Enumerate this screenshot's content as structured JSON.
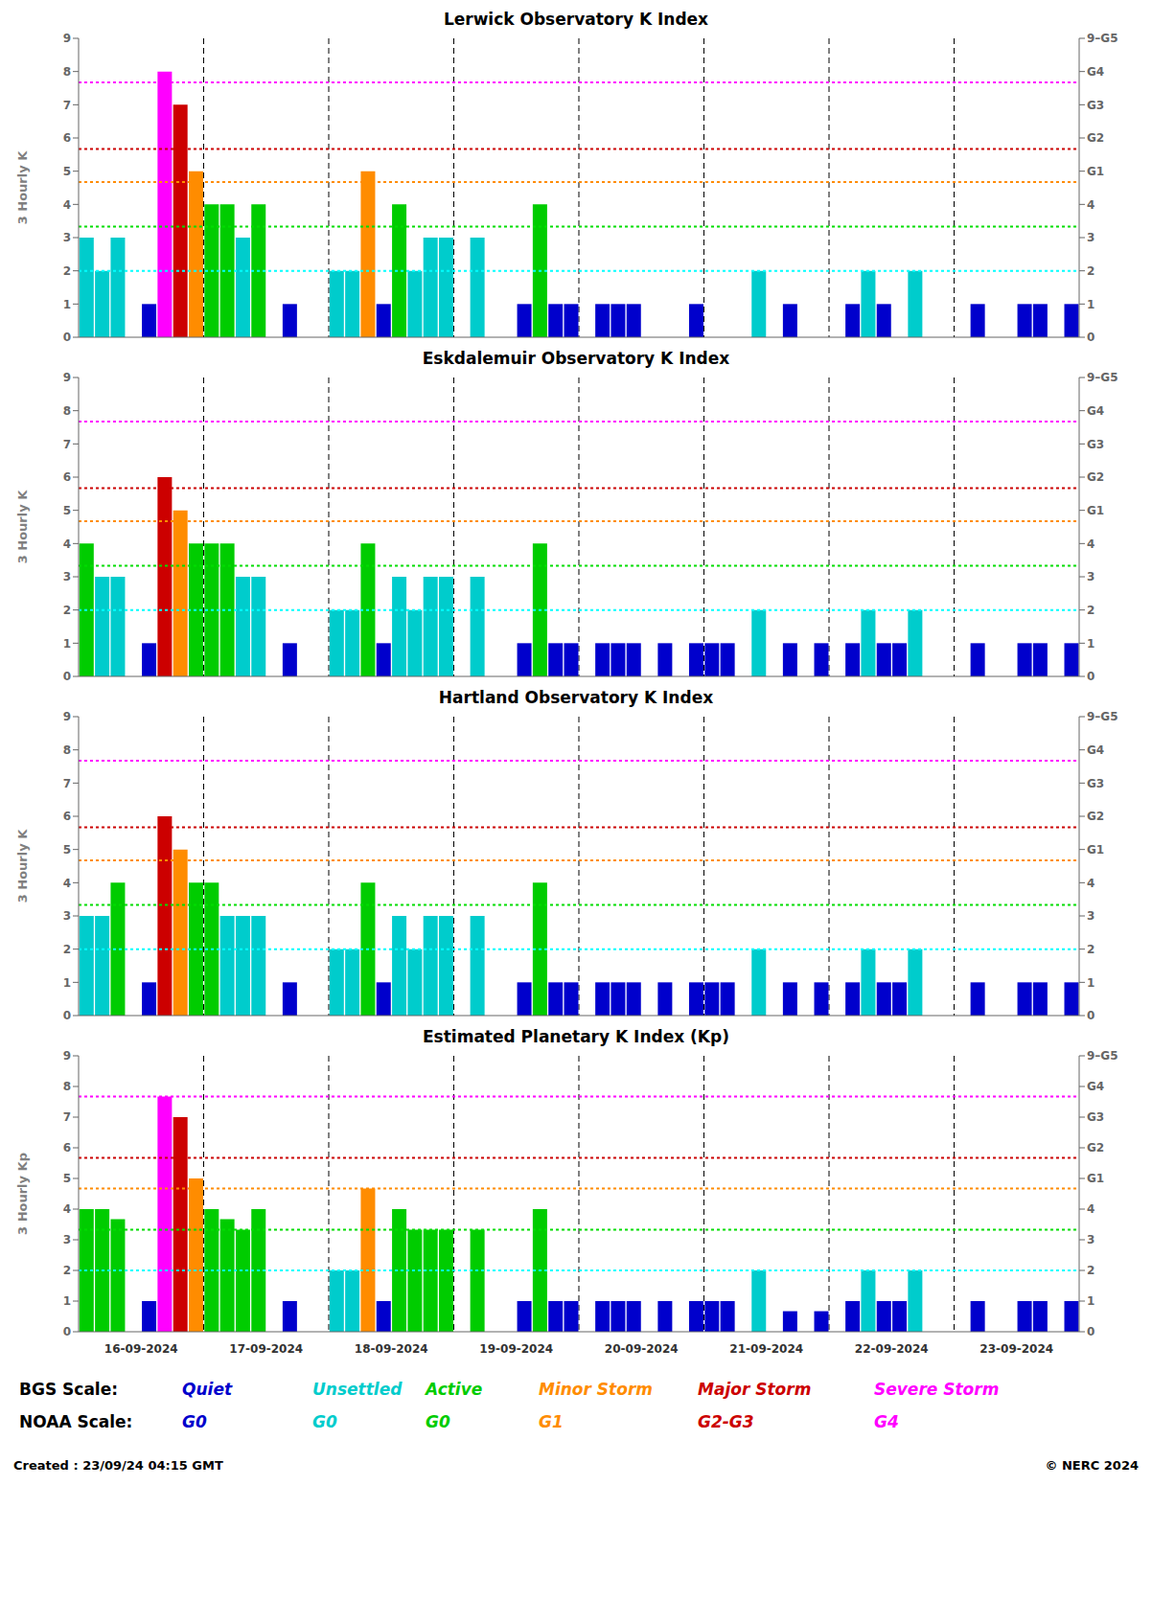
{
  "chart_data": [
    {
      "type": "bar",
      "title": "Lerwick Observatory K Index",
      "ylabel": "3 Hourly K",
      "tick_labels": "y",
      "categories": [
        null,
        null,
        null,
        null,
        "16-09-2024",
        null,
        null,
        null,
        null,
        null,
        null,
        null,
        "17-09-2024",
        null,
        null,
        null,
        null,
        null,
        null,
        null,
        "18-09-2024",
        null,
        null,
        null,
        null,
        null,
        null,
        null,
        "19-09-2024",
        null,
        null,
        null,
        null,
        null,
        null,
        null,
        "20-09-2024",
        null,
        null,
        null,
        null,
        null,
        null,
        null,
        "21-09-2024",
        null,
        null,
        null,
        null,
        null,
        null,
        null,
        "22-09-2024",
        null,
        null,
        null,
        null,
        null,
        null,
        null,
        "23-09-2024",
        null,
        null,
        null
      ],
      "values": [
        3,
        2,
        3,
        0,
        1,
        8,
        7,
        5,
        4,
        4,
        3,
        4,
        0,
        1,
        0,
        0,
        2,
        2,
        5,
        1,
        4,
        2,
        3,
        3,
        0,
        3,
        0,
        0,
        1,
        4,
        1,
        1,
        0,
        1,
        1,
        1,
        0,
        0,
        0,
        1,
        0,
        0,
        0,
        2,
        0,
        1,
        0,
        0,
        0,
        1,
        2,
        1,
        0,
        2,
        0,
        0,
        0,
        1,
        0,
        0,
        1,
        1,
        0,
        1
      ],
      "colors": [
        "#00CCCC",
        "#00CCCC",
        "#00CCCC",
        "#0000CC",
        "#0000CC",
        "#FF00FF",
        "#CC0000",
        "#FF8C00",
        "#00CC00",
        "#00CC00",
        "#00CCCC",
        "#00CC00",
        "#0000CC",
        "#0000CC",
        "#0000CC",
        "#0000CC",
        "#00CCCC",
        "#00CCCC",
        "#FF8C00",
        "#0000CC",
        "#00CC00",
        "#00CCCC",
        "#00CCCC",
        "#00CCCC",
        "#0000CC",
        "#00CCCC",
        "#0000CC",
        "#0000CC",
        "#0000CC",
        "#00CC00",
        "#0000CC",
        "#0000CC",
        "#0000CC",
        "#0000CC",
        "#0000CC",
        "#0000CC",
        "#0000CC",
        "#0000CC",
        "#0000CC",
        "#0000CC",
        "#0000CC",
        "#0000CC",
        "#0000CC",
        "#00CCCC",
        "#0000CC",
        "#0000CC",
        "#0000CC",
        "#0000CC",
        "#0000CC",
        "#0000CC",
        "#00CCCC",
        "#0000CC",
        "#0000CC",
        "#00CCCC",
        "#0000CC",
        "#0000CC",
        "#0000CC",
        "#0000CC",
        "#0000CC",
        "#0000CC",
        "#0000CC",
        "#0000CC",
        "#0000CC",
        "#0000CC"
      ],
      "ylim": [
        0,
        9
      ],
      "yticks": [
        0,
        1,
        2,
        3,
        4,
        5,
        6,
        7,
        8,
        9
      ],
      "y2lim": [
        0,
        9
      ],
      "y2ticks": [
        0,
        1,
        2,
        3,
        4,
        {
          "value": 5,
          "label": "G1"
        },
        {
          "value": 6,
          "label": "G2"
        },
        {
          "value": 7,
          "label": "G3"
        },
        {
          "value": 8,
          "label": "G4"
        },
        {
          "value": 9,
          "label": "9–G5"
        }
      ],
      "hlines": [
        {
          "value": 2.0,
          "color": "#00FFFF"
        },
        {
          "value": 3.33,
          "color": "#00DD00"
        },
        {
          "value": 4.67,
          "color": "#FF8C00"
        },
        {
          "value": 5.67,
          "color": "#CC0000"
        },
        {
          "value": 7.67,
          "color": "#FF00FF"
        }
      ]
    },
    {
      "type": "bar",
      "title": "Eskdalemuir Observatory K Index",
      "ylabel": "3 Hourly K",
      "tick_labels": "y",
      "categories": [
        null,
        null,
        null,
        null,
        "16-09-2024",
        null,
        null,
        null,
        null,
        null,
        null,
        null,
        "17-09-2024",
        null,
        null,
        null,
        null,
        null,
        null,
        null,
        "18-09-2024",
        null,
        null,
        null,
        null,
        null,
        null,
        null,
        "19-09-2024",
        null,
        null,
        null,
        null,
        null,
        null,
        null,
        "20-09-2024",
        null,
        null,
        null,
        null,
        null,
        null,
        null,
        "21-09-2024",
        null,
        null,
        null,
        null,
        null,
        null,
        null,
        "22-09-2024",
        null,
        null,
        null,
        null,
        null,
        null,
        null,
        "23-09-2024",
        null,
        null,
        null
      ],
      "values": [
        4,
        3,
        3,
        0,
        1,
        6,
        5,
        4,
        4,
        4,
        3,
        3,
        0,
        1,
        0,
        0,
        2,
        2,
        4,
        1,
        3,
        2,
        3,
        3,
        0,
        3,
        0,
        0,
        1,
        4,
        1,
        1,
        0,
        1,
        1,
        1,
        0,
        1,
        0,
        1,
        1,
        1,
        0,
        2,
        0,
        1,
        0,
        1,
        0,
        1,
        2,
        1,
        1,
        2,
        0,
        0,
        0,
        1,
        0,
        0,
        1,
        1,
        0,
        1
      ],
      "colors": [
        "#00CC00",
        "#00CCCC",
        "#00CCCC",
        "#0000CC",
        "#0000CC",
        "#CC0000",
        "#FF8C00",
        "#00CC00",
        "#00CC00",
        "#00CC00",
        "#00CCCC",
        "#00CCCC",
        "#0000CC",
        "#0000CC",
        "#0000CC",
        "#0000CC",
        "#00CCCC",
        "#00CCCC",
        "#00CC00",
        "#0000CC",
        "#00CCCC",
        "#00CCCC",
        "#00CCCC",
        "#00CCCC",
        "#0000CC",
        "#00CCCC",
        "#0000CC",
        "#0000CC",
        "#0000CC",
        "#00CC00",
        "#0000CC",
        "#0000CC",
        "#0000CC",
        "#0000CC",
        "#0000CC",
        "#0000CC",
        "#0000CC",
        "#0000CC",
        "#0000CC",
        "#0000CC",
        "#0000CC",
        "#0000CC",
        "#0000CC",
        "#00CCCC",
        "#0000CC",
        "#0000CC",
        "#0000CC",
        "#0000CC",
        "#0000CC",
        "#0000CC",
        "#00CCCC",
        "#0000CC",
        "#0000CC",
        "#00CCCC",
        "#0000CC",
        "#0000CC",
        "#0000CC",
        "#0000CC",
        "#0000CC",
        "#0000CC",
        "#0000CC",
        "#0000CC",
        "#0000CC",
        "#0000CC"
      ],
      "ylim": [
        0,
        9
      ],
      "yticks": [
        0,
        1,
        2,
        3,
        4,
        5,
        6,
        7,
        8,
        9
      ],
      "y2lim": [
        0,
        9
      ],
      "y2ticks": [
        0,
        1,
        2,
        3,
        4,
        {
          "value": 5,
          "label": "G1"
        },
        {
          "value": 6,
          "label": "G2"
        },
        {
          "value": 7,
          "label": "G3"
        },
        {
          "value": 8,
          "label": "G4"
        },
        {
          "value": 9,
          "label": "9–G5"
        }
      ],
      "hlines": [
        {
          "value": 2.0,
          "color": "#00FFFF"
        },
        {
          "value": 3.33,
          "color": "#00DD00"
        },
        {
          "value": 4.67,
          "color": "#FF8C00"
        },
        {
          "value": 5.67,
          "color": "#CC0000"
        },
        {
          "value": 7.67,
          "color": "#FF00FF"
        }
      ]
    },
    {
      "type": "bar",
      "title": "Hartland Observatory K Index",
      "ylabel": "3 Hourly K",
      "tick_labels": "y",
      "categories": [
        null,
        null,
        null,
        null,
        "16-09-2024",
        null,
        null,
        null,
        null,
        null,
        null,
        null,
        "17-09-2024",
        null,
        null,
        null,
        null,
        null,
        null,
        null,
        "18-09-2024",
        null,
        null,
        null,
        null,
        null,
        null,
        null,
        "19-09-2024",
        null,
        null,
        null,
        null,
        null,
        null,
        null,
        "20-09-2024",
        null,
        null,
        null,
        null,
        null,
        null,
        null,
        "21-09-2024",
        null,
        null,
        null,
        null,
        null,
        null,
        null,
        "22-09-2024",
        null,
        null,
        null,
        null,
        null,
        null,
        null,
        "23-09-2024",
        null,
        null,
        null
      ],
      "values": [
        3,
        3,
        4,
        0,
        1,
        6,
        5,
        4,
        4,
        3,
        3,
        3,
        0,
        1,
        0,
        0,
        2,
        2,
        4,
        1,
        3,
        2,
        3,
        3,
        0,
        3,
        0,
        0,
        1,
        4,
        1,
        1,
        0,
        1,
        1,
        1,
        0,
        1,
        0,
        1,
        1,
        1,
        0,
        2,
        0,
        1,
        0,
        1,
        0,
        1,
        2,
        1,
        1,
        2,
        0,
        0,
        0,
        1,
        0,
        0,
        1,
        1,
        0,
        1
      ],
      "colors": [
        "#00CCCC",
        "#00CCCC",
        "#00CC00",
        "#0000CC",
        "#0000CC",
        "#CC0000",
        "#FF8C00",
        "#00CC00",
        "#00CC00",
        "#00CCCC",
        "#00CCCC",
        "#00CCCC",
        "#0000CC",
        "#0000CC",
        "#0000CC",
        "#0000CC",
        "#00CCCC",
        "#00CCCC",
        "#00CC00",
        "#0000CC",
        "#00CCCC",
        "#00CCCC",
        "#00CCCC",
        "#00CCCC",
        "#0000CC",
        "#00CCCC",
        "#0000CC",
        "#0000CC",
        "#0000CC",
        "#00CC00",
        "#0000CC",
        "#0000CC",
        "#0000CC",
        "#0000CC",
        "#0000CC",
        "#0000CC",
        "#0000CC",
        "#0000CC",
        "#0000CC",
        "#0000CC",
        "#0000CC",
        "#0000CC",
        "#0000CC",
        "#00CCCC",
        "#0000CC",
        "#0000CC",
        "#0000CC",
        "#0000CC",
        "#0000CC",
        "#0000CC",
        "#00CCCC",
        "#0000CC",
        "#0000CC",
        "#00CCCC",
        "#0000CC",
        "#0000CC",
        "#0000CC",
        "#0000CC",
        "#0000CC",
        "#0000CC",
        "#0000CC",
        "#0000CC",
        "#0000CC",
        "#0000CC"
      ],
      "ylim": [
        0,
        9
      ],
      "yticks": [
        0,
        1,
        2,
        3,
        4,
        5,
        6,
        7,
        8,
        9
      ],
      "y2lim": [
        0,
        9
      ],
      "y2ticks": [
        0,
        1,
        2,
        3,
        4,
        {
          "value": 5,
          "label": "G1"
        },
        {
          "value": 6,
          "label": "G2"
        },
        {
          "value": 7,
          "label": "G3"
        },
        {
          "value": 8,
          "label": "G4"
        },
        {
          "value": 9,
          "label": "9–G5"
        }
      ],
      "hlines": [
        {
          "value": 2.0,
          "color": "#00FFFF"
        },
        {
          "value": 3.33,
          "color": "#00DD00"
        },
        {
          "value": 4.67,
          "color": "#FF8C00"
        },
        {
          "value": 5.67,
          "color": "#CC0000"
        },
        {
          "value": 7.67,
          "color": "#FF00FF"
        }
      ]
    },
    {
      "type": "bar",
      "title": "Estimated Planetary K Index (Kp)",
      "ylabel": "3 Hourly Kp",
      "categories": [
        null,
        null,
        null,
        null,
        "16-09-2024",
        null,
        null,
        null,
        null,
        null,
        null,
        null,
        "17-09-2024",
        null,
        null,
        null,
        null,
        null,
        null,
        null,
        "18-09-2024",
        null,
        null,
        null,
        null,
        null,
        null,
        null,
        "19-09-2024",
        null,
        null,
        null,
        null,
        null,
        null,
        null,
        "20-09-2024",
        null,
        null,
        null,
        null,
        null,
        null,
        null,
        "21-09-2024",
        null,
        null,
        null,
        null,
        null,
        null,
        null,
        "22-09-2024",
        null,
        null,
        null,
        null,
        null,
        null,
        null,
        "23-09-2024",
        null,
        null,
        null
      ],
      "values": [
        4,
        4,
        3.67,
        0,
        1,
        7.67,
        7,
        5,
        4,
        3.67,
        3.33,
        4,
        0,
        1,
        0,
        0,
        2,
        2,
        4.67,
        1,
        4,
        3.33,
        3.33,
        3.33,
        0,
        3.33,
        0,
        0,
        1,
        4,
        1,
        1,
        0,
        1,
        1,
        1,
        0,
        1,
        0,
        1,
        1,
        1,
        0,
        2,
        0,
        0.67,
        0,
        0.67,
        0,
        1,
        2,
        1,
        1,
        2,
        0,
        0,
        0,
        1,
        0,
        0,
        1,
        1,
        0,
        1
      ],
      "colors": [
        "#00CC00",
        "#00CC00",
        "#00CC00",
        "#0000CC",
        "#0000CC",
        "#FF00FF",
        "#CC0000",
        "#FF8C00",
        "#00CC00",
        "#00CC00",
        "#00CC00",
        "#00CC00",
        "#0000CC",
        "#0000CC",
        "#0000CC",
        "#0000CC",
        "#00CCCC",
        "#00CCCC",
        "#FF8C00",
        "#0000CC",
        "#00CC00",
        "#00CC00",
        "#00CC00",
        "#00CC00",
        "#0000CC",
        "#00CC00",
        "#0000CC",
        "#0000CC",
        "#0000CC",
        "#00CC00",
        "#0000CC",
        "#0000CC",
        "#0000CC",
        "#0000CC",
        "#0000CC",
        "#0000CC",
        "#0000CC",
        "#0000CC",
        "#0000CC",
        "#0000CC",
        "#0000CC",
        "#0000CC",
        "#0000CC",
        "#00CCCC",
        "#0000CC",
        "#0000CC",
        "#0000CC",
        "#0000CC",
        "#0000CC",
        "#0000CC",
        "#00CCCC",
        "#0000CC",
        "#0000CC",
        "#00CCCC",
        "#0000CC",
        "#0000CC",
        "#0000CC",
        "#0000CC",
        "#0000CC",
        "#0000CC",
        "#0000CC",
        "#0000CC",
        "#0000CC",
        "#0000CC"
      ],
      "ylim": [
        0,
        9
      ],
      "yticks": [
        0,
        1,
        2,
        3,
        4,
        5,
        6,
        7,
        8,
        9
      ],
      "y2lim": [
        0,
        9
      ],
      "y2ticks": [
        0,
        1,
        2,
        3,
        4,
        {
          "value": 5,
          "label": "G1"
        },
        {
          "value": 6,
          "label": "G2"
        },
        {
          "value": 7,
          "label": "G3"
        },
        {
          "value": 8,
          "label": "G4"
        },
        {
          "value": 9,
          "label": "9–G5"
        }
      ],
      "hlines": [
        {
          "value": 2.0,
          "color": "#00FFFF"
        },
        {
          "value": 3.33,
          "color": "#00DD00"
        },
        {
          "value": 4.67,
          "color": "#FF8C00"
        },
        {
          "value": 5.67,
          "color": "#CC0000"
        },
        {
          "value": 7.67,
          "color": "#FF00FF"
        }
      ],
      "annotations": [
        {
          "text": "BGS Scale:",
          "items": [
            {
              "text": "Quiet",
              "color": "#0000CC"
            },
            {
              "text": "Unsettled",
              "color": "#00CCCC"
            },
            {
              "text": "Active",
              "color": "#00CC00"
            },
            {
              "text": "Minor Storm",
              "color": "#FF8C00"
            },
            {
              "text": "Major Storm",
              "color": "#CC0000"
            },
            {
              "text": "Severe Storm",
              "color": "#FF00FF"
            }
          ]
        },
        {
          "text": "NOAA Scale:",
          "items": [
            {
              "text": "G0",
              "color": "#0000CC"
            },
            {
              "text": "G0",
              "color": "#00CCCC"
            },
            {
              "text": "G0",
              "color": "#00CC00"
            },
            {
              "text": "G1",
              "color": "#FF8C00"
            },
            {
              "text": "G2-G3",
              "color": "#CC0000"
            },
            {
              "text": "G4",
              "color": "#FF00FF"
            }
          ]
        },
        {
          "text": "Created : 23/09/24 04:15 GMT"
        },
        {
          "text": "© NERC 2024"
        }
      ]
    }
  ]
}
